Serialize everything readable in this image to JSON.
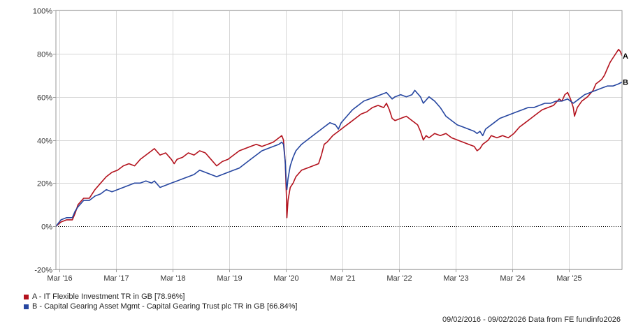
{
  "chart_data": {
    "type": "line",
    "y_axis": {
      "ticks": [
        "100%",
        "80%",
        "60%",
        "40%",
        "20%",
        "0%",
        "-20%"
      ],
      "range": [
        -20,
        100
      ],
      "grid": true,
      "zero_line": "dotted"
    },
    "x_axis": {
      "ticks": [
        "Mar '16",
        "Mar '17",
        "Mar '18",
        "Mar '19",
        "Mar '20",
        "Mar '21",
        "Mar '22",
        "Mar '23",
        "Mar '24",
        "Mar '25"
      ],
      "tick_years": [
        2016.17,
        2017.17,
        2018.17,
        2019.17,
        2020.17,
        2021.17,
        2022.17,
        2023.17,
        2024.17,
        2025.17
      ],
      "range": [
        2016.11,
        2026.11
      ],
      "grid": true
    },
    "series": [
      {
        "name": "A - IT Flexible Investment TR in GB [78.96%]",
        "end_label": "A",
        "color": "#b3121d",
        "points": [
          [
            2016.11,
            0
          ],
          [
            2016.2,
            2
          ],
          [
            2016.3,
            3
          ],
          [
            2016.4,
            3
          ],
          [
            2016.45,
            6
          ],
          [
            2016.5,
            10
          ],
          [
            2016.6,
            13
          ],
          [
            2016.7,
            13
          ],
          [
            2016.8,
            17
          ],
          [
            2016.9,
            20
          ],
          [
            2017.0,
            23
          ],
          [
            2017.1,
            25
          ],
          [
            2017.2,
            26
          ],
          [
            2017.3,
            28
          ],
          [
            2017.4,
            29
          ],
          [
            2017.5,
            28
          ],
          [
            2017.6,
            31
          ],
          [
            2017.7,
            33
          ],
          [
            2017.8,
            35
          ],
          [
            2017.85,
            36
          ],
          [
            2017.95,
            33
          ],
          [
            2018.05,
            34
          ],
          [
            2018.15,
            31
          ],
          [
            2018.2,
            29
          ],
          [
            2018.25,
            31
          ],
          [
            2018.35,
            32
          ],
          [
            2018.45,
            34
          ],
          [
            2018.55,
            33
          ],
          [
            2018.65,
            35
          ],
          [
            2018.75,
            34
          ],
          [
            2018.85,
            31
          ],
          [
            2018.95,
            28
          ],
          [
            2019.05,
            30
          ],
          [
            2019.15,
            31
          ],
          [
            2019.25,
            33
          ],
          [
            2019.35,
            35
          ],
          [
            2019.45,
            36
          ],
          [
            2019.55,
            37
          ],
          [
            2019.65,
            38
          ],
          [
            2019.75,
            37
          ],
          [
            2019.85,
            38
          ],
          [
            2019.95,
            39
          ],
          [
            2020.05,
            41
          ],
          [
            2020.1,
            42
          ],
          [
            2020.13,
            40
          ],
          [
            2020.16,
            30
          ],
          [
            2020.18,
            15
          ],
          [
            2020.19,
            4
          ],
          [
            2020.21,
            12
          ],
          [
            2020.25,
            18
          ],
          [
            2020.3,
            20
          ],
          [
            2020.35,
            23
          ],
          [
            2020.45,
            26
          ],
          [
            2020.55,
            27
          ],
          [
            2020.65,
            28
          ],
          [
            2020.75,
            29
          ],
          [
            2020.8,
            33
          ],
          [
            2020.85,
            38
          ],
          [
            2020.9,
            39
          ],
          [
            2021.0,
            42
          ],
          [
            2021.1,
            44
          ],
          [
            2021.2,
            46
          ],
          [
            2021.3,
            48
          ],
          [
            2021.4,
            50
          ],
          [
            2021.5,
            52
          ],
          [
            2021.6,
            53
          ],
          [
            2021.7,
            55
          ],
          [
            2021.8,
            56
          ],
          [
            2021.9,
            55
          ],
          [
            2021.95,
            57
          ],
          [
            2022.0,
            54
          ],
          [
            2022.05,
            50
          ],
          [
            2022.1,
            49
          ],
          [
            2022.2,
            50
          ],
          [
            2022.3,
            51
          ],
          [
            2022.4,
            49
          ],
          [
            2022.5,
            47
          ],
          [
            2022.55,
            44
          ],
          [
            2022.6,
            40
          ],
          [
            2022.65,
            42
          ],
          [
            2022.7,
            41
          ],
          [
            2022.8,
            43
          ],
          [
            2022.9,
            42
          ],
          [
            2023.0,
            43
          ],
          [
            2023.1,
            41
          ],
          [
            2023.2,
            40
          ],
          [
            2023.3,
            39
          ],
          [
            2023.4,
            38
          ],
          [
            2023.5,
            37
          ],
          [
            2023.55,
            35
          ],
          [
            2023.6,
            36
          ],
          [
            2023.65,
            38
          ],
          [
            2023.7,
            39
          ],
          [
            2023.75,
            40
          ],
          [
            2023.8,
            42
          ],
          [
            2023.9,
            41
          ],
          [
            2024.0,
            42
          ],
          [
            2024.1,
            41
          ],
          [
            2024.2,
            43
          ],
          [
            2024.3,
            46
          ],
          [
            2024.4,
            48
          ],
          [
            2024.5,
            50
          ],
          [
            2024.6,
            52
          ],
          [
            2024.7,
            54
          ],
          [
            2024.8,
            55
          ],
          [
            2024.9,
            56
          ],
          [
            2025.0,
            59
          ],
          [
            2025.05,
            58
          ],
          [
            2025.1,
            61
          ],
          [
            2025.15,
            62
          ],
          [
            2025.2,
            59
          ],
          [
            2025.25,
            55
          ],
          [
            2025.27,
            51
          ],
          [
            2025.32,
            55
          ],
          [
            2025.4,
            58
          ],
          [
            2025.5,
            60
          ],
          [
            2025.6,
            63
          ],
          [
            2025.65,
            66
          ],
          [
            2025.7,
            67
          ],
          [
            2025.75,
            68
          ],
          [
            2025.8,
            70
          ],
          [
            2025.85,
            73
          ],
          [
            2025.9,
            76
          ],
          [
            2025.95,
            78
          ],
          [
            2026.0,
            80
          ],
          [
            2026.05,
            82
          ],
          [
            2026.08,
            81
          ],
          [
            2026.11,
            79
          ]
        ]
      },
      {
        "name": "B - Capital Gearing Asset Mgmt - Capital Gearing Trust plc TR in GB [66.84%]",
        "end_label": "B",
        "color": "#2646a0",
        "points": [
          [
            2016.11,
            0
          ],
          [
            2016.2,
            3
          ],
          [
            2016.3,
            4
          ],
          [
            2016.4,
            4
          ],
          [
            2016.45,
            7
          ],
          [
            2016.5,
            9
          ],
          [
            2016.6,
            12
          ],
          [
            2016.7,
            12
          ],
          [
            2016.8,
            14
          ],
          [
            2016.9,
            15
          ],
          [
            2017.0,
            17
          ],
          [
            2017.1,
            16
          ],
          [
            2017.2,
            17
          ],
          [
            2017.3,
            18
          ],
          [
            2017.4,
            19
          ],
          [
            2017.5,
            20
          ],
          [
            2017.6,
            20
          ],
          [
            2017.7,
            21
          ],
          [
            2017.8,
            20
          ],
          [
            2017.85,
            21
          ],
          [
            2017.95,
            18
          ],
          [
            2018.05,
            19
          ],
          [
            2018.15,
            20
          ],
          [
            2018.25,
            21
          ],
          [
            2018.35,
            22
          ],
          [
            2018.45,
            23
          ],
          [
            2018.55,
            24
          ],
          [
            2018.65,
            26
          ],
          [
            2018.75,
            25
          ],
          [
            2018.85,
            24
          ],
          [
            2018.95,
            23
          ],
          [
            2019.05,
            24
          ],
          [
            2019.15,
            25
          ],
          [
            2019.25,
            26
          ],
          [
            2019.35,
            27
          ],
          [
            2019.45,
            29
          ],
          [
            2019.55,
            31
          ],
          [
            2019.65,
            33
          ],
          [
            2019.75,
            35
          ],
          [
            2019.85,
            36
          ],
          [
            2019.95,
            37
          ],
          [
            2020.05,
            38
          ],
          [
            2020.1,
            39
          ],
          [
            2020.13,
            38
          ],
          [
            2020.16,
            30
          ],
          [
            2020.18,
            20
          ],
          [
            2020.19,
            17
          ],
          [
            2020.21,
            22
          ],
          [
            2020.25,
            28
          ],
          [
            2020.3,
            32
          ],
          [
            2020.35,
            35
          ],
          [
            2020.45,
            38
          ],
          [
            2020.55,
            40
          ],
          [
            2020.65,
            42
          ],
          [
            2020.75,
            44
          ],
          [
            2020.85,
            46
          ],
          [
            2020.95,
            48
          ],
          [
            2021.05,
            47
          ],
          [
            2021.1,
            45
          ],
          [
            2021.15,
            48
          ],
          [
            2021.25,
            51
          ],
          [
            2021.35,
            54
          ],
          [
            2021.45,
            56
          ],
          [
            2021.55,
            58
          ],
          [
            2021.65,
            59
          ],
          [
            2021.75,
            60
          ],
          [
            2021.85,
            61
          ],
          [
            2021.95,
            62
          ],
          [
            2022.05,
            59
          ],
          [
            2022.1,
            60
          ],
          [
            2022.2,
            61
          ],
          [
            2022.3,
            60
          ],
          [
            2022.4,
            61
          ],
          [
            2022.45,
            63
          ],
          [
            2022.55,
            60
          ],
          [
            2022.6,
            57
          ],
          [
            2022.7,
            60
          ],
          [
            2022.8,
            58
          ],
          [
            2022.9,
            55
          ],
          [
            2023.0,
            51
          ],
          [
            2023.1,
            49
          ],
          [
            2023.2,
            47
          ],
          [
            2023.3,
            46
          ],
          [
            2023.4,
            45
          ],
          [
            2023.5,
            44
          ],
          [
            2023.55,
            43
          ],
          [
            2023.6,
            44
          ],
          [
            2023.65,
            42
          ],
          [
            2023.7,
            45
          ],
          [
            2023.75,
            46
          ],
          [
            2023.85,
            48
          ],
          [
            2023.95,
            50
          ],
          [
            2024.05,
            51
          ],
          [
            2024.15,
            52
          ],
          [
            2024.25,
            53
          ],
          [
            2024.35,
            54
          ],
          [
            2024.45,
            55
          ],
          [
            2024.55,
            55
          ],
          [
            2024.65,
            56
          ],
          [
            2024.75,
            57
          ],
          [
            2024.85,
            57
          ],
          [
            2024.95,
            58
          ],
          [
            2025.05,
            58
          ],
          [
            2025.15,
            59
          ],
          [
            2025.25,
            57
          ],
          [
            2025.35,
            59
          ],
          [
            2025.45,
            61
          ],
          [
            2025.55,
            62
          ],
          [
            2025.65,
            63
          ],
          [
            2025.75,
            64
          ],
          [
            2025.85,
            65
          ],
          [
            2025.95,
            65
          ],
          [
            2026.05,
            66
          ],
          [
            2026.11,
            66.8
          ]
        ]
      }
    ]
  },
  "footer": "09/02/2016 - 09/02/2026 Data from FE fundinfo2026"
}
